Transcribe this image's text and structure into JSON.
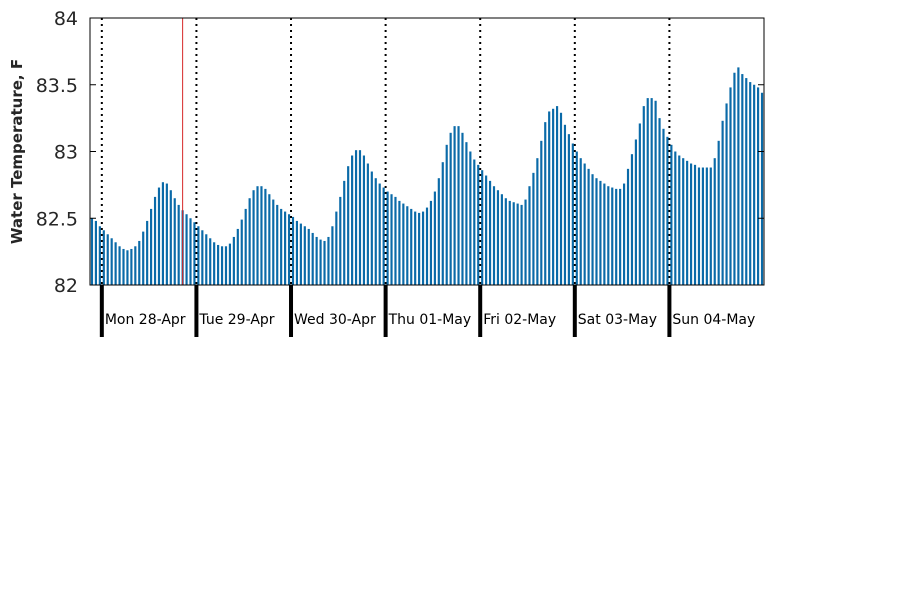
{
  "chart_data": {
    "type": "bar",
    "title": "",
    "xlabel": "",
    "ylabel": "Water Temperature, F",
    "ylim": [
      82,
      84
    ],
    "yticks": [
      "82",
      "82.5",
      "83",
      "83.5",
      "84"
    ],
    "x_start": "Sun 27-Apr 21:00",
    "x_end": "Sun 04-May 23:00",
    "bar_interval_hours": 1,
    "day_labels": [
      "Mon 28-Apr",
      "Tue 29-Apr",
      "Wed 30-Apr",
      "Thu 01-May",
      "Fri 02-May",
      "Sat 03-May",
      "Sun 04-May"
    ],
    "current_time_marker": "Mon 28-Apr 20:00",
    "grid": "daily dotted vertical lines at midnight",
    "legend": "none",
    "colors": {
      "bars": "#0a6aa8",
      "marker": "#d62728",
      "axis": "#000000"
    },
    "series": [
      {
        "values": [
          82.5,
          82.48,
          82.44,
          82.41,
          82.38,
          82.35,
          82.32,
          82.29,
          82.27,
          82.26,
          82.27,
          82.29,
          82.33,
          82.4,
          82.48,
          82.57,
          82.66,
          82.73,
          82.77,
          82.76,
          82.71,
          82.65,
          82.6,
          82.56,
          82.53,
          82.5,
          82.47,
          82.44,
          82.41,
          82.38,
          82.35,
          82.32,
          82.3,
          82.29,
          82.29,
          82.31,
          82.36,
          82.42,
          82.49,
          82.57,
          82.65,
          82.71,
          82.74,
          82.74,
          82.72,
          82.68,
          82.64,
          82.6,
          82.57,
          82.55,
          82.53,
          82.51,
          82.48,
          82.46,
          82.44,
          82.42,
          82.39,
          82.36,
          82.34,
          82.33,
          82.36,
          82.44,
          82.55,
          82.66,
          82.78,
          82.89,
          82.97,
          83.01,
          83.01,
          82.97,
          82.91,
          82.85,
          82.8,
          82.76,
          82.73,
          82.7,
          82.68,
          82.66,
          82.63,
          82.61,
          82.59,
          82.57,
          82.55,
          82.54,
          82.55,
          82.58,
          82.63,
          82.7,
          82.8,
          82.92,
          83.05,
          83.14,
          83.19,
          83.19,
          83.14,
          83.07,
          83.0,
          82.94,
          82.9,
          82.86,
          82.82,
          82.78,
          82.74,
          82.71,
          82.68,
          82.65,
          82.63,
          82.62,
          82.61,
          82.6,
          82.64,
          82.74,
          82.84,
          82.95,
          83.08,
          83.22,
          83.3,
          83.32,
          83.34,
          83.29,
          83.2,
          83.13,
          83.06,
          83.0,
          82.95,
          82.91,
          82.87,
          82.83,
          82.8,
          82.78,
          82.76,
          82.74,
          82.73,
          82.72,
          82.72,
          82.76,
          82.87,
          82.98,
          83.09,
          83.21,
          83.34,
          83.4,
          83.4,
          83.38,
          83.25,
          83.17,
          83.11,
          83.05,
          83.0,
          82.97,
          82.95,
          82.93,
          82.91,
          82.9,
          82.88,
          82.88,
          82.88,
          82.88,
          82.95,
          83.08,
          83.23,
          83.36,
          83.48,
          83.59,
          83.63,
          83.58,
          83.55,
          83.52,
          83.5,
          83.48,
          83.44
        ]
      }
    ]
  }
}
